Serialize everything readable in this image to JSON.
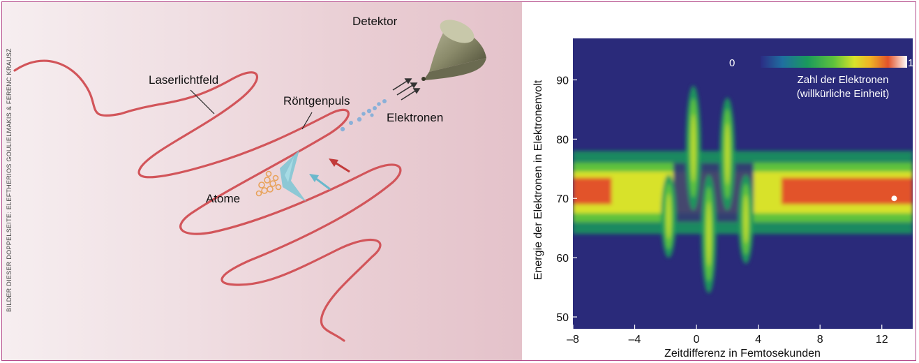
{
  "credit": "BILDER DIESER DOPPELSEITE: ELEFTHERIOS GOULIELMAKIS & FERENC KRAUSZ",
  "diagram": {
    "labels": {
      "detektor": "Detektor",
      "laserlichtfeld": "Laserlichtfeld",
      "roentgenpuls": "Röntgenpuls",
      "elektronen": "Elektronen",
      "atome": "Atome"
    },
    "colors": {
      "laser": "#d2555a",
      "pulse": "#7cc6d4",
      "atoms": "#e8a25a",
      "electrons": "#8ab0d8",
      "arrow_red": "#c23a3a",
      "arrow_blue": "#6ab8cc"
    }
  },
  "chart_data": {
    "type": "heatmap",
    "xlabel": "Zeitdifferenz in Femtosekunden",
    "ylabel": "Energie der Elektronen in Elektronenvolt",
    "xlim": [
      -8,
      14
    ],
    "ylim": [
      48,
      97
    ],
    "xticks": [
      "–8",
      "–4",
      "0",
      "4",
      "8",
      "12"
    ],
    "xtick_values": [
      -8,
      -4,
      0,
      4,
      8,
      12
    ],
    "yticks": [
      "50",
      "60",
      "70",
      "80",
      "90"
    ],
    "ytick_values": [
      50,
      60,
      70,
      80,
      90
    ],
    "colorbar": {
      "min_label": "0",
      "max_label": "1",
      "label_line1": "Zahl der Elektronen",
      "label_line2": "(willkürliche Einheit)"
    },
    "colormap": [
      "#2b2c84",
      "#1f6fa0",
      "#1a9a5c",
      "#5fc23c",
      "#d8e22a",
      "#f0b225",
      "#e2522a",
      "#ffffff"
    ],
    "background": "#2a2a7a",
    "signal_centre_energy": 71,
    "oscillation_centres": [
      {
        "x": -1.8,
        "dy": -8
      },
      {
        "x": -0.2,
        "dy": 15
      },
      {
        "x": 0.8,
        "dy": -14
      },
      {
        "x": 2.0,
        "dy": 13
      },
      {
        "x": 3.2,
        "dy": -9
      }
    ]
  }
}
